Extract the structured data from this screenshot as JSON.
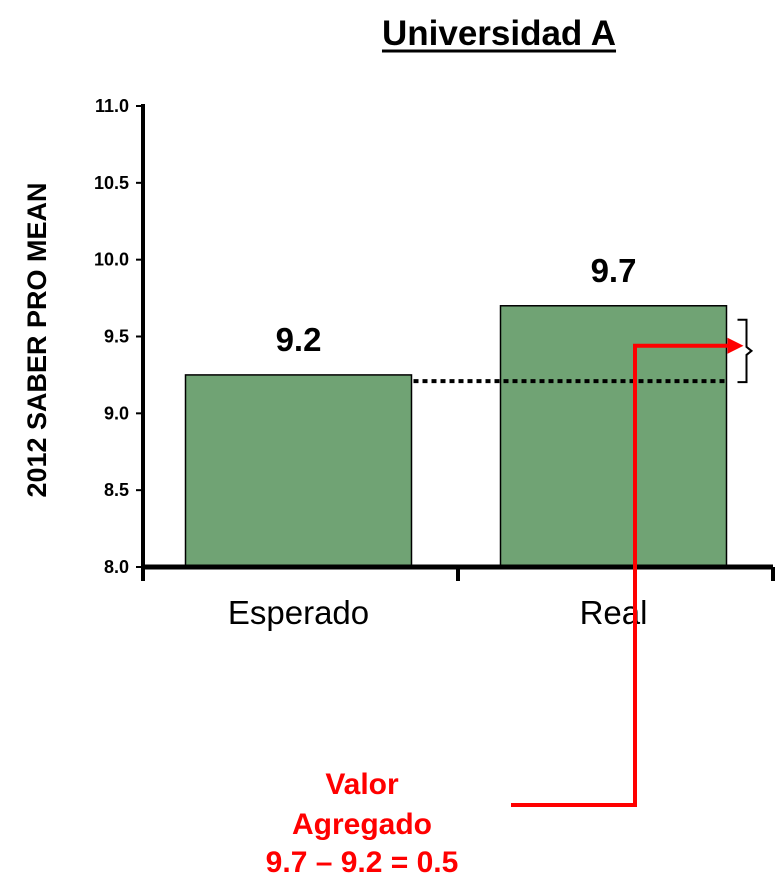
{
  "chart_data": {
    "type": "bar",
    "title": "Universidad A",
    "ylabel": "2012 SABER PRO MEAN",
    "xlabel": "",
    "categories": [
      "Esperado",
      "Real"
    ],
    "values": [
      9.25,
      9.7
    ],
    "data_labels": [
      "9.2",
      "9.7"
    ],
    "ylim": [
      8.0,
      11.0
    ],
    "yticks": [
      "8.0",
      "8.5",
      "9.0",
      "9.5",
      "10.0",
      "10.5",
      "11.0"
    ],
    "grid": false,
    "legend": "none",
    "bar_color": "#70a374",
    "bar_edge_color": "#000000",
    "reference_line": {
      "value": 9.21,
      "style": "dotted"
    },
    "annotation": {
      "lines": [
        "Valor",
        "Agregado",
        "9.7 – 9.2 = 0.5"
      ],
      "color": "#ff0000",
      "arrow_value": 9.44
    }
  }
}
